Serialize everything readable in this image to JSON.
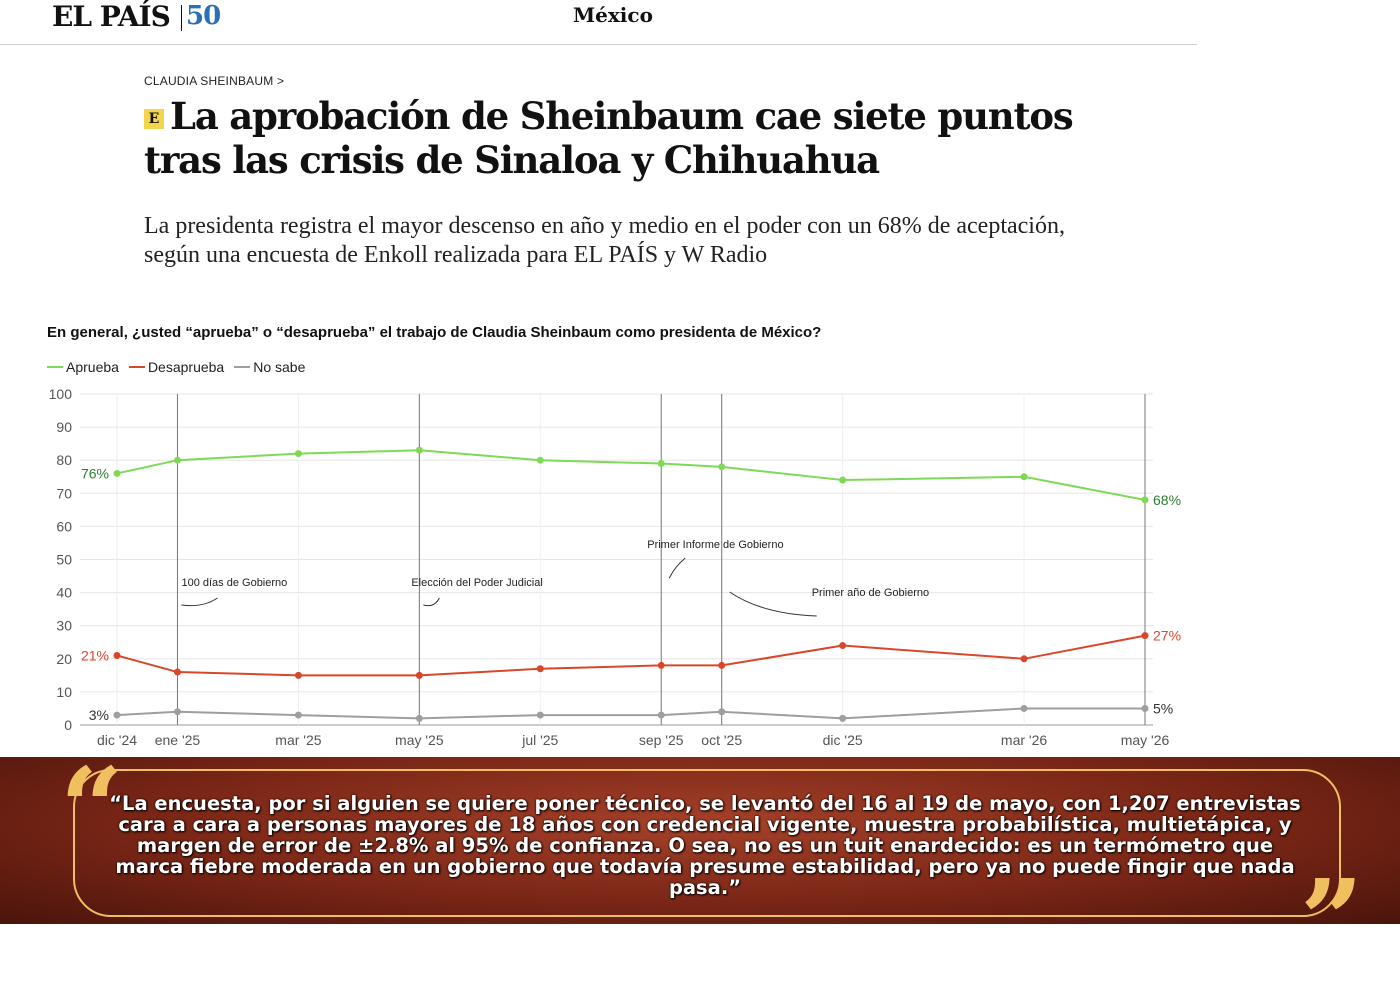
{
  "header": {
    "logo": "EL PAÍS",
    "logo_anniversary": "50",
    "section": "México"
  },
  "article": {
    "kicker": "CLAUDIA SHEINBAUM >",
    "badge": "E",
    "headline": "La aprobación de Sheinbaum cae siete puntos tras las crisis de Sinaloa y Chihuahua",
    "subhead": "La presidenta registra el mayor descenso en año y medio en el poder con un 68% de aceptación, según una encuesta de Enkoll realizada para EL PAÍS y W Radio"
  },
  "chart_data": {
    "type": "line",
    "title": "En general, ¿usted “aprueba” o “desaprueba” el trabajo de Claudia Sheinbaum como presidenta de México?",
    "x": [
      "2024-12",
      "2025-01",
      "2025-03",
      "2025-05",
      "2025-07",
      "2025-09",
      "2025-10",
      "2025-12",
      "2026-03",
      "2026-05"
    ],
    "x_tick_labels": [
      "dic '24",
      "ene '25",
      "mar '25",
      "may '25",
      "jul '25",
      "sep '25",
      "oct '25",
      "dic '25",
      "mar '26",
      "may '26"
    ],
    "ylim": [
      0,
      100
    ],
    "y_ticks": [
      0,
      10,
      20,
      30,
      40,
      50,
      60,
      70,
      80,
      90,
      100
    ],
    "grid": true,
    "legend_position": "top-left",
    "series": [
      {
        "name": "Aprueba",
        "color": "#7ed957",
        "label_color": "#2e7d32",
        "values": [
          76,
          80,
          82,
          83,
          80,
          79,
          78,
          74,
          75,
          68
        ],
        "start_label": "76%",
        "end_label": "68%"
      },
      {
        "name": "Desaprueba",
        "color": "#d9472b",
        "label_color": "#d9472b",
        "values": [
          21,
          16,
          15,
          15,
          17,
          18,
          18,
          24,
          20,
          27
        ],
        "start_label": "21%",
        "end_label": "27%"
      },
      {
        "name": "No sabe",
        "color": "#9e9e9e",
        "label_color": "#333333",
        "values": [
          3,
          4,
          3,
          2,
          3,
          3,
          4,
          2,
          5,
          5
        ],
        "start_label": "3%",
        "end_label": "5%"
      }
    ],
    "annotations": [
      {
        "x": "2025-01",
        "label": "100 días de Gobierno",
        "y": 42
      },
      {
        "x": "2025-05",
        "label": "Elección del Poder Judicial",
        "y": 42
      },
      {
        "x": "2025-09",
        "label": "Primer Informe de Gobierno",
        "y": 48
      },
      {
        "x": "2025-10",
        "label": "Primer año de Gobierno",
        "y": 42
      },
      {
        "x": "2026-05",
        "label": "",
        "y": 0
      }
    ]
  },
  "quote": {
    "text": "“La encuesta, por si alguien se quiere poner técnico, se levantó del 16 al 19 de mayo, con 1,207 entrevistas cara a cara a personas mayores de 18 años con credencial vigente, muestra probabilística, multietápica, y margen de error de ±2.8% al 95% de confianza. O sea, no es un tuit enardecido: es un termómetro que marca fiebre moderada en un gobierno que todavía presume estabilidad, pero ya no puede fingir que nada pasa.”",
    "open_mark": "“",
    "close_mark": "”"
  }
}
